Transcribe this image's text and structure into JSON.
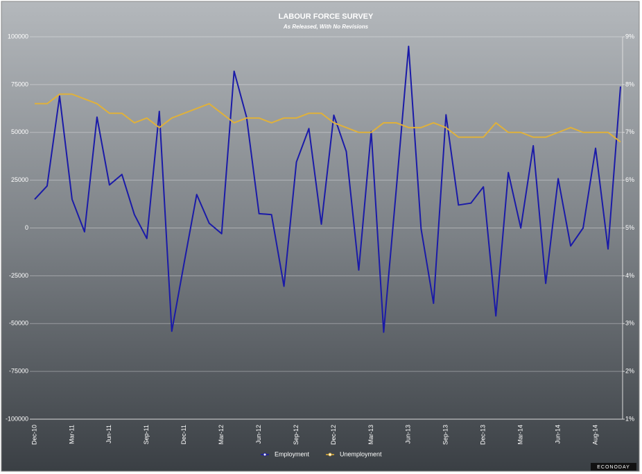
{
  "chart_data": {
    "type": "line",
    "title": "LABOUR FORCE SURVEY",
    "subtitle": "As Released, With No Revisions",
    "logo": "ECONODAY",
    "categories": [
      "Dec-10",
      null,
      null,
      "Mar-11",
      null,
      null,
      "Jun-11",
      null,
      null,
      "Sep-11",
      null,
      null,
      "Dec-11",
      null,
      null,
      "Mar-12",
      null,
      null,
      "Jun-12",
      null,
      null,
      "Sep-12",
      null,
      null,
      "Dec-12",
      null,
      null,
      "Mar-13",
      null,
      null,
      "Jun-13",
      null,
      null,
      "Sep-13",
      null,
      null,
      "Dec-13",
      null,
      null,
      "Mar-14",
      null,
      null,
      "Jun-14",
      null,
      null,
      "Aug-14",
      null,
      null
    ],
    "series": [
      {
        "name": "Employment",
        "color": "#1a1aa8",
        "axis": "y",
        "values": [
          15000,
          22000,
          69000,
          15000,
          -2000,
          58000,
          22500,
          28000,
          7000,
          -5500,
          61000,
          -54000,
          -18000,
          17500,
          2500,
          -3000,
          82000,
          58000,
          7500,
          7000,
          -30500,
          34500,
          52000,
          2000,
          59000,
          40000,
          -22000,
          50500,
          -54500,
          19500,
          95000,
          -400,
          -39400,
          59200,
          12000,
          13000,
          21500,
          -46000,
          29000,
          0,
          43000,
          -29000,
          25800,
          -9400,
          0,
          41700,
          -11000,
          74000
        ]
      },
      {
        "name": "Unemployment",
        "color": "#e0b13a",
        "axis": "y2",
        "values": [
          7.6,
          7.6,
          7.8,
          7.8,
          7.7,
          7.6,
          7.4,
          7.4,
          7.2,
          7.3,
          7.1,
          7.3,
          7.4,
          7.5,
          7.6,
          7.4,
          7.2,
          7.3,
          7.3,
          7.2,
          7.3,
          7.3,
          7.4,
          7.4,
          7.2,
          7.1,
          7.0,
          7.0,
          7.2,
          7.2,
          7.1,
          7.1,
          7.2,
          7.1,
          6.9,
          6.9,
          6.9,
          7.2,
          7.0,
          7.0,
          6.9,
          6.9,
          7.0,
          7.1,
          7.0,
          7.0,
          7.0,
          6.8
        ]
      }
    ],
    "ylim": [
      -100000,
      100000
    ],
    "yticks": [
      -100000,
      -75000,
      -50000,
      -25000,
      0,
      25000,
      50000,
      75000,
      100000
    ],
    "y2lim": [
      1,
      9
    ],
    "y2ticks": [
      {
        "value": 1,
        "label": "1%"
      },
      {
        "value": 2,
        "label": "2%"
      },
      {
        "value": 3,
        "label": "3%"
      },
      {
        "value": 4,
        "label": "4%"
      },
      {
        "value": 5,
        "label": "5%"
      },
      {
        "value": 6,
        "label": "6%"
      },
      {
        "value": 7,
        "label": "7%"
      },
      {
        "value": 8,
        "label": "8%"
      },
      {
        "value": 9,
        "label": "9%"
      }
    ],
    "grid": true,
    "legend": "bottom"
  }
}
